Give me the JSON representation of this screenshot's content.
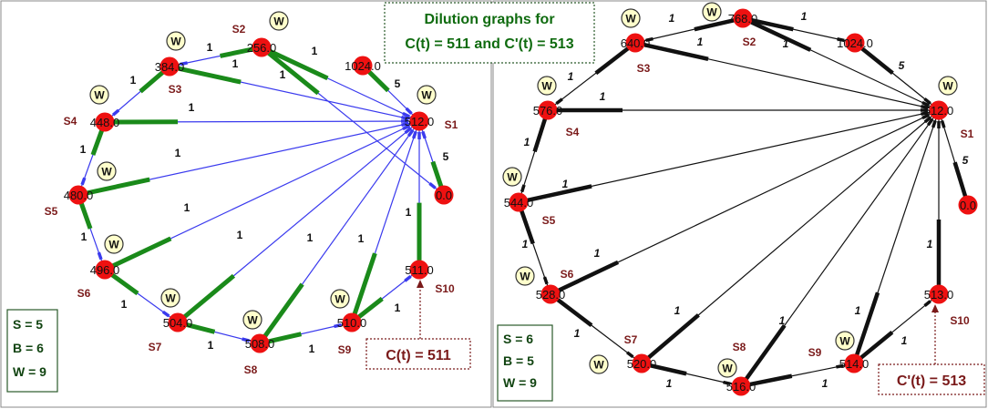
{
  "title": {
    "line1": "Dilution graphs for",
    "line2": "C(t) = 511 and C'(t) = 513"
  },
  "colors": {
    "node": "#ee1111",
    "thin_left": "#3a3aee",
    "thick_left": "#1a8a1a",
    "thin_right": "#111111",
    "thick_right": "#111111",
    "label_dark_red": "#7a1a1a",
    "w_fill": "#ffffcc"
  },
  "w_label": "W",
  "graphs": [
    {
      "id": "left",
      "info": [
        "S = 5",
        "B = 6",
        "W = 9"
      ],
      "target": "C(t) = 511",
      "nodes": [
        {
          "id": "n256",
          "label": "256.0",
          "s": "S2",
          "w": true
        },
        {
          "id": "n1024",
          "label": "1024.0",
          "s": "",
          "w": false
        },
        {
          "id": "n384",
          "label": "384.0",
          "s": "S3",
          "w": true
        },
        {
          "id": "n512",
          "label": "512.0",
          "s": "S1",
          "w": true
        },
        {
          "id": "n448",
          "label": "448.0",
          "s": "S4",
          "w": true
        },
        {
          "id": "n0",
          "label": "0.0",
          "s": "",
          "w": false
        },
        {
          "id": "n480",
          "label": "480.0",
          "s": "S5",
          "w": true
        },
        {
          "id": "n496",
          "label": "496.0",
          "s": "S6",
          "w": true
        },
        {
          "id": "n511",
          "label": "511.0",
          "s": "S10",
          "w": false
        },
        {
          "id": "n504",
          "label": "504.0",
          "s": "S7",
          "w": true
        },
        {
          "id": "n508",
          "label": "508.0",
          "s": "S8",
          "w": true
        },
        {
          "id": "n510",
          "label": "510.0",
          "s": "S9",
          "w": true
        }
      ],
      "edges": [
        {
          "from": "n256",
          "to": "n384",
          "label": "1"
        },
        {
          "from": "n256",
          "to": "n512",
          "label": "1"
        },
        {
          "from": "n256",
          "to": "n0",
          "label": "1"
        },
        {
          "from": "n1024",
          "to": "n512",
          "label": "5"
        },
        {
          "from": "n0",
          "to": "n512",
          "label": "5"
        },
        {
          "from": "n384",
          "to": "n448",
          "label": "1"
        },
        {
          "from": "n384",
          "to": "n512",
          "label": "1"
        },
        {
          "from": "n448",
          "to": "n512",
          "label": "1"
        },
        {
          "from": "n448",
          "to": "n480",
          "label": "1"
        },
        {
          "from": "n480",
          "to": "n512",
          "label": "1"
        },
        {
          "from": "n480",
          "to": "n496",
          "label": "1"
        },
        {
          "from": "n496",
          "to": "n512",
          "label": "1"
        },
        {
          "from": "n496",
          "to": "n504",
          "label": "1"
        },
        {
          "from": "n504",
          "to": "n512",
          "label": "1"
        },
        {
          "from": "n504",
          "to": "n508",
          "label": "1"
        },
        {
          "from": "n508",
          "to": "n512",
          "label": "1"
        },
        {
          "from": "n508",
          "to": "n510",
          "label": "1"
        },
        {
          "from": "n510",
          "to": "n512",
          "label": "1"
        },
        {
          "from": "n510",
          "to": "n511",
          "label": "1"
        },
        {
          "from": "n511",
          "to": "n512",
          "label": "1"
        }
      ]
    },
    {
      "id": "right",
      "info": [
        "S = 6",
        "B = 5",
        "W = 9"
      ],
      "target": "C'(t) = 513",
      "nodes": [
        {
          "id": "m768",
          "label": "768.0",
          "s": "S2",
          "w": true
        },
        {
          "id": "m640",
          "label": "640.0",
          "s": "S3",
          "w": true
        },
        {
          "id": "m1024",
          "label": "1024.0",
          "s": "",
          "w": false
        },
        {
          "id": "m512",
          "label": "512.0",
          "s": "S1",
          "w": true
        },
        {
          "id": "m576",
          "label": "576.0",
          "s": "S4",
          "w": true
        },
        {
          "id": "m0",
          "label": "0.0",
          "s": "",
          "w": false
        },
        {
          "id": "m544",
          "label": "544.0",
          "s": "S5",
          "w": true
        },
        {
          "id": "m528",
          "label": "528.0",
          "s": "S6",
          "w": true
        },
        {
          "id": "m513",
          "label": "513.0",
          "s": "S10",
          "w": false
        },
        {
          "id": "m520",
          "label": "520.0",
          "s": "S7",
          "w": true
        },
        {
          "id": "m516",
          "label": "516.0",
          "s": "S8",
          "w": true
        },
        {
          "id": "m514",
          "label": "514.0",
          "s": "S9",
          "w": true
        }
      ],
      "edges": [
        {
          "from": "m768",
          "to": "m640",
          "label": "1"
        },
        {
          "from": "m768",
          "to": "m1024",
          "label": "1"
        },
        {
          "from": "m768",
          "to": "m512",
          "label": "1"
        },
        {
          "from": "m1024",
          "to": "m512",
          "label": "5"
        },
        {
          "from": "m0",
          "to": "m512",
          "label": "5"
        },
        {
          "from": "m640",
          "to": "m576",
          "label": "1"
        },
        {
          "from": "m640",
          "to": "m512",
          "label": "1"
        },
        {
          "from": "m576",
          "to": "m512",
          "label": "1"
        },
        {
          "from": "m576",
          "to": "m544",
          "label": "1"
        },
        {
          "from": "m544",
          "to": "m512",
          "label": "1"
        },
        {
          "from": "m544",
          "to": "m528",
          "label": "1"
        },
        {
          "from": "m528",
          "to": "m512",
          "label": "1"
        },
        {
          "from": "m528",
          "to": "m520",
          "label": "1"
        },
        {
          "from": "m520",
          "to": "m512",
          "label": "1"
        },
        {
          "from": "m520",
          "to": "m516",
          "label": "1"
        },
        {
          "from": "m516",
          "to": "m512",
          "label": "1"
        },
        {
          "from": "m516",
          "to": "m514",
          "label": "1"
        },
        {
          "from": "m514",
          "to": "m512",
          "label": "1"
        },
        {
          "from": "m514",
          "to": "m513",
          "label": "1"
        },
        {
          "from": "m513",
          "to": "m512",
          "label": "1"
        }
      ]
    }
  ]
}
